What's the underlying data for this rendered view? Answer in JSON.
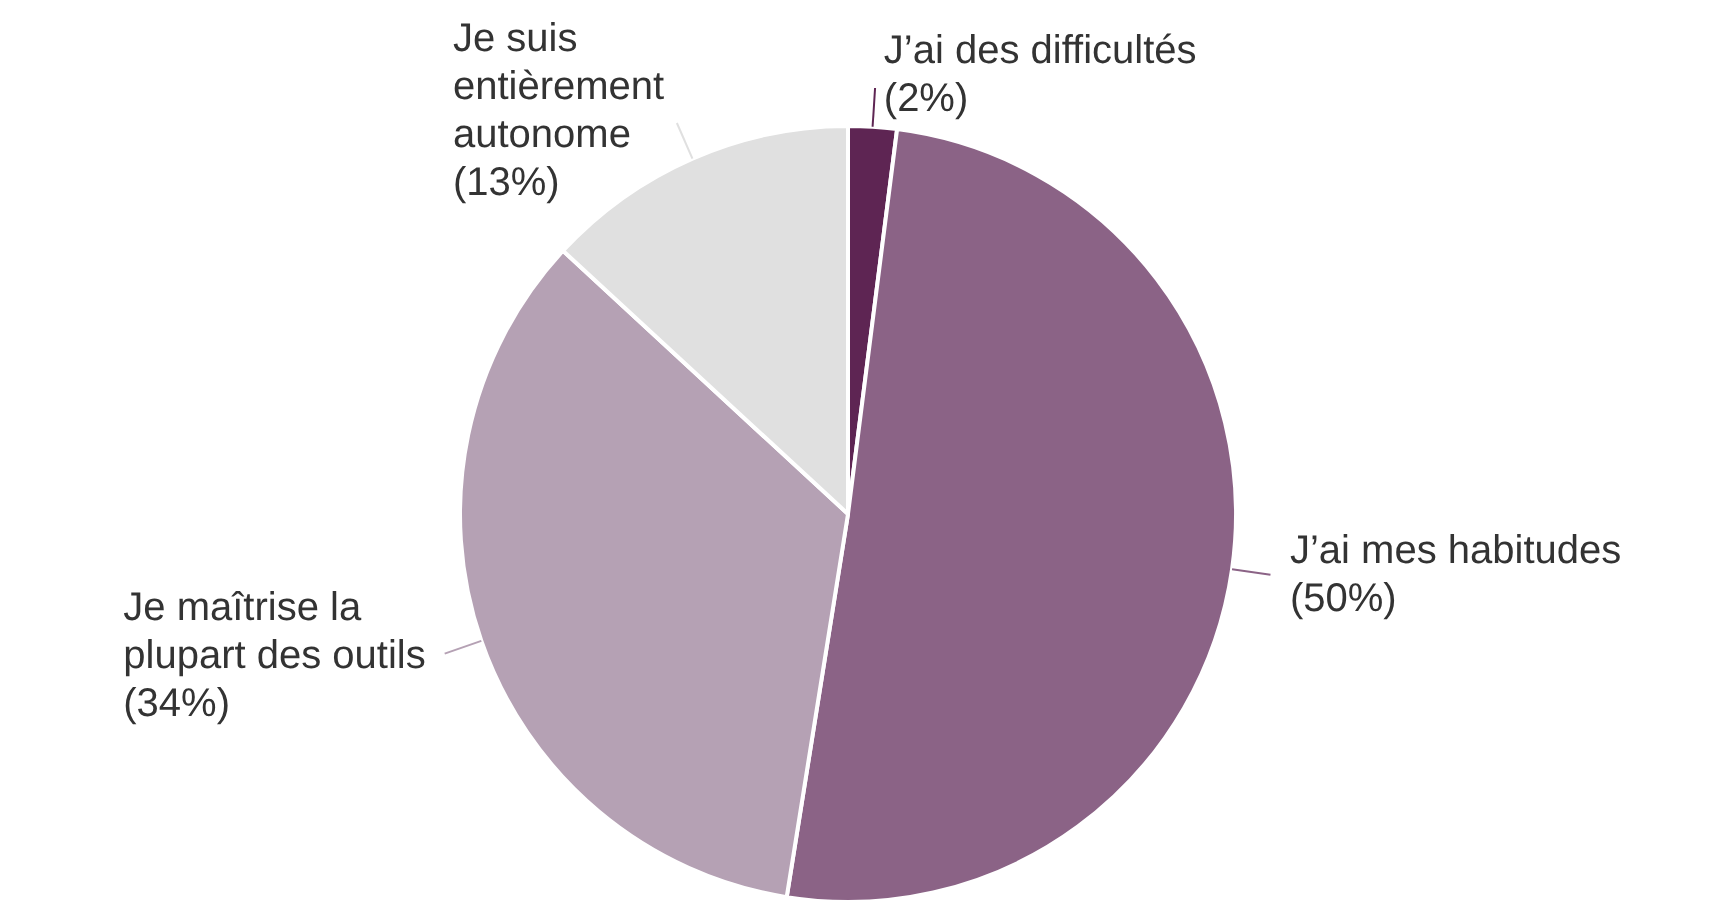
{
  "chart_data": {
    "type": "pie",
    "categories": [
      "J’ai des difficultés",
      "J’ai mes habitudes",
      "Je maîtrise la plupart des outils",
      "Je suis entièrement autonome"
    ],
    "values": [
      2,
      50,
      34,
      13
    ],
    "colors": [
      "#5e2553",
      "#8b6386",
      "#b5a1b4",
      "#e0e0e0"
    ],
    "value_labels": [
      "(2%)",
      "(50%)",
      "(34%)",
      "(13%)"
    ],
    "legend": false
  }
}
